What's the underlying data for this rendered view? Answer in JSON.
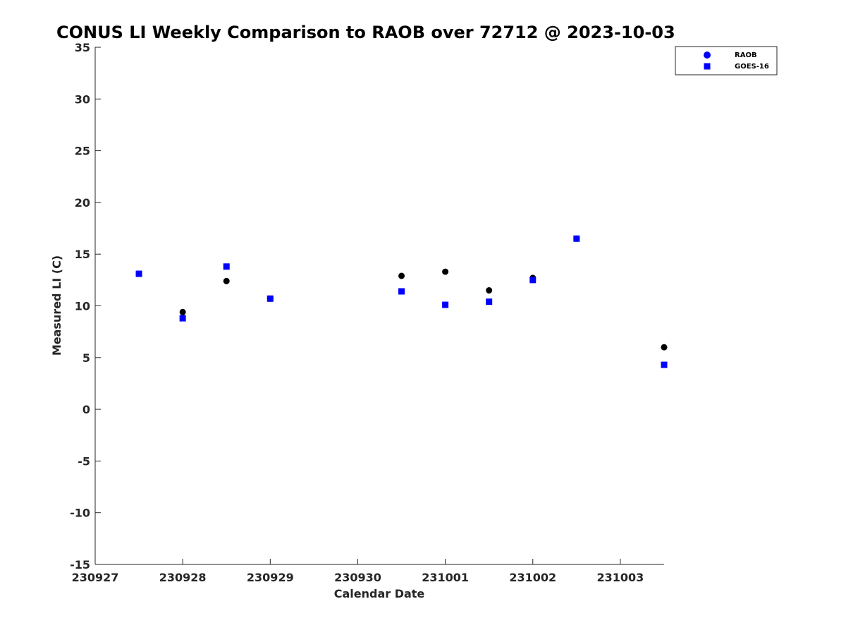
{
  "chart_data": {
    "type": "scatter",
    "title": "CONUS LI Weekly Comparison to RAOB over 72712 @ 2023-10-03",
    "xlabel": "Calendar Date",
    "ylabel": "Measured LI (C)",
    "xlim": [
      "2023-09-27",
      "2023-10-03 12:00"
    ],
    "ylim": [
      -15,
      35
    ],
    "x_ticks": [
      "230927",
      "230928",
      "230929",
      "230930",
      "231001",
      "231002",
      "231003"
    ],
    "y_ticks": [
      "35",
      "30",
      "25",
      "20",
      "15",
      "10",
      "5",
      "0",
      "-5",
      "-10",
      "-15"
    ],
    "grid": false,
    "legend_position": "top-right outside",
    "series": [
      {
        "name": "RAOB",
        "marker": "circle",
        "color": "#000000",
        "x": [
          "2023-09-27 12:00",
          "2023-09-28 00:00",
          "2023-09-28 12:00",
          "2023-09-29 00:00",
          "2023-09-30 12:00",
          "2023-10-01 00:00",
          "2023-10-01 12:00",
          "2023-10-02 00:00",
          "2023-10-02 12:00",
          "2023-10-03 12:00"
        ],
        "y": [
          13.1,
          9.4,
          12.4,
          10.7,
          12.9,
          13.3,
          11.5,
          12.7,
          16.5,
          6.0
        ]
      },
      {
        "name": "GOES-16",
        "marker": "square",
        "color": "#0000ff",
        "x": [
          "2023-09-27 12:00",
          "2023-09-28 00:00",
          "2023-09-28 12:00",
          "2023-09-29 00:00",
          "2023-09-30 12:00",
          "2023-10-01 00:00",
          "2023-10-01 12:00",
          "2023-10-02 00:00",
          "2023-10-02 12:00",
          "2023-10-03 12:00"
        ],
        "y": [
          13.1,
          8.8,
          13.8,
          10.7,
          11.4,
          10.1,
          10.4,
          12.5,
          16.5,
          4.3
        ]
      }
    ],
    "legend_marker_color": "#0000ff"
  }
}
